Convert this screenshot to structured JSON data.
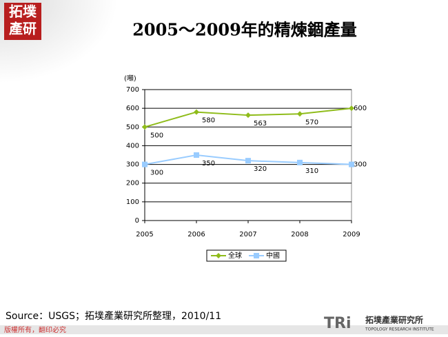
{
  "logo": {
    "line1": "拓墣",
    "line2": "產研"
  },
  "footer": {
    "source": "Source：USGS；拓墣產業研究所整理，2010/11",
    "copyright": "版權所有，翻印必究",
    "brand": "TRi",
    "brand_name": "拓墣產業研究所",
    "brand_english": "TOPOLOGY RESEARCH INSTITUTE"
  },
  "chart_data": {
    "type": "line",
    "title": "2005～2009年的精煉錮產量",
    "y_label": "(噸)",
    "x": [
      2005,
      2006,
      2007,
      2008,
      2009
    ],
    "xlim": [
      2005,
      2009
    ],
    "xticks": [
      2005,
      2006,
      2007,
      2008,
      2009
    ],
    "ylim": [
      0,
      700
    ],
    "yticks": [
      0,
      100,
      200,
      300,
      400,
      500,
      600,
      700
    ],
    "grid": true,
    "legend": "bottom",
    "series": [
      {
        "name": "全球",
        "color": "#8fbc1a",
        "values": [
          500,
          580,
          563,
          570,
          600
        ]
      },
      {
        "name": "中國",
        "color": "#99ccff",
        "values": [
          300,
          350,
          320,
          310,
          300
        ]
      }
    ]
  }
}
